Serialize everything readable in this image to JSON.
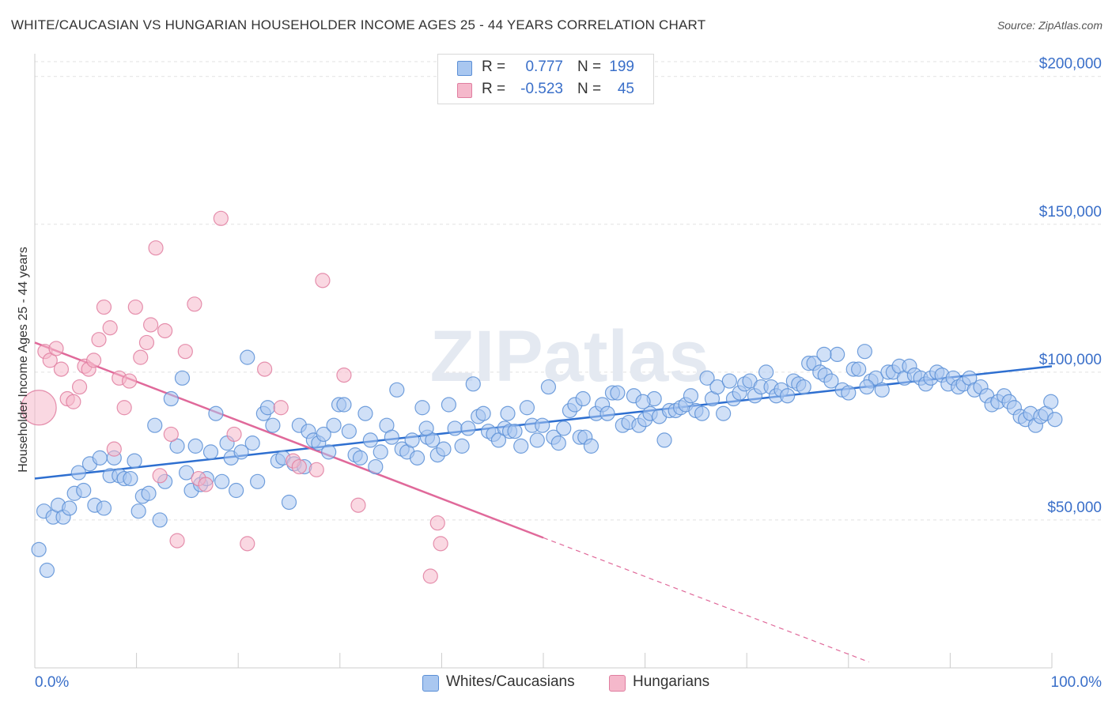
{
  "title": "WHITE/CAUCASIAN VS HUNGARIAN HOUSEHOLDER INCOME AGES 25 - 44 YEARS CORRELATION CHART",
  "source": "Source: ZipAtlas.com",
  "watermark": "ZIPatlas",
  "stats": [
    {
      "r_label": "R =",
      "r_value": "0.777",
      "n_label": "N =",
      "n_value": "199",
      "color": "#a9c7f0"
    },
    {
      "r_label": "R =",
      "r_value": "-0.523",
      "n_label": "N =",
      "n_value": "45",
      "color": "#f5b8cb"
    }
  ],
  "legend": [
    {
      "label": "Whites/Caucasians",
      "color": "#a9c7f0"
    },
    {
      "label": "Hungarians",
      "color": "#f5b8cb"
    }
  ],
  "chart_data": {
    "type": "scatter",
    "title": "WHITE/CAUCASIAN VS HUNGARIAN HOUSEHOLDER INCOME AGES 25 - 44 YEARS CORRELATION CHART",
    "xlabel": "",
    "ylabel": "Householder Income Ages 25 - 44 years",
    "xlim": [
      0,
      100
    ],
    "ylim": [
      0,
      205000
    ],
    "x_ticks": [
      "0.0%",
      "100.0%"
    ],
    "y_ticks": [
      {
        "value": 50000,
        "label": "$50,000"
      },
      {
        "value": 100000,
        "label": "$100,000"
      },
      {
        "value": 150000,
        "label": "$150,000"
      },
      {
        "value": 200000,
        "label": "$200,000"
      }
    ],
    "grid": "horizontal dashed",
    "series": [
      {
        "name": "Whites/Caucasians",
        "color": "#a9c7f0",
        "edge_color": "#5b8fd6",
        "trend_color": "#2e6fd0",
        "trend": {
          "x0": 0,
          "y0": 64000,
          "x1": 100,
          "y1": 102000,
          "dashed_to": null
        },
        "points": [
          [
            0.4,
            40000
          ],
          [
            1.2,
            33000
          ],
          [
            0.9,
            53000
          ],
          [
            1.8,
            51000
          ],
          [
            2.3,
            55000
          ],
          [
            2.8,
            51000
          ],
          [
            3.4,
            54000
          ],
          [
            3.9,
            59000
          ],
          [
            4.3,
            66000
          ],
          [
            4.8,
            60000
          ],
          [
            5.4,
            69000
          ],
          [
            5.9,
            55000
          ],
          [
            6.4,
            71000
          ],
          [
            6.8,
            54000
          ],
          [
            7.4,
            65000
          ],
          [
            7.8,
            71000
          ],
          [
            8.3,
            65000
          ],
          [
            8.8,
            64000
          ],
          [
            9.4,
            64000
          ],
          [
            9.8,
            70000
          ],
          [
            10.2,
            53000
          ],
          [
            10.6,
            58000
          ],
          [
            11.2,
            59000
          ],
          [
            11.8,
            82000
          ],
          [
            12.3,
            50000
          ],
          [
            12.8,
            63000
          ],
          [
            13.4,
            91000
          ],
          [
            14.0,
            75000
          ],
          [
            14.5,
            98000
          ],
          [
            14.9,
            66000
          ],
          [
            15.4,
            60000
          ],
          [
            15.8,
            75000
          ],
          [
            16.3,
            62000
          ],
          [
            16.9,
            64000
          ],
          [
            17.3,
            73000
          ],
          [
            17.8,
            86000
          ],
          [
            18.4,
            63000
          ],
          [
            18.9,
            76000
          ],
          [
            19.3,
            71000
          ],
          [
            19.8,
            60000
          ],
          [
            20.3,
            73000
          ],
          [
            20.9,
            105000
          ],
          [
            21.4,
            76000
          ],
          [
            21.9,
            63000
          ],
          [
            22.5,
            86000
          ],
          [
            22.9,
            88000
          ],
          [
            23.4,
            82000
          ],
          [
            23.9,
            70000
          ],
          [
            24.4,
            71000
          ],
          [
            25.0,
            56000
          ],
          [
            25.5,
            69000
          ],
          [
            26.0,
            82000
          ],
          [
            26.5,
            68000
          ],
          [
            26.9,
            80000
          ],
          [
            27.4,
            77000
          ],
          [
            27.9,
            76000
          ],
          [
            28.4,
            79000
          ],
          [
            28.9,
            73000
          ],
          [
            29.4,
            82000
          ],
          [
            29.9,
            89000
          ],
          [
            30.4,
            89000
          ],
          [
            30.9,
            80000
          ],
          [
            31.5,
            72000
          ],
          [
            32.0,
            71000
          ],
          [
            32.5,
            86000
          ],
          [
            33.0,
            77000
          ],
          [
            33.5,
            68000
          ],
          [
            34.0,
            73000
          ],
          [
            34.6,
            82000
          ],
          [
            35.1,
            78000
          ],
          [
            35.6,
            94000
          ],
          [
            36.1,
            74000
          ],
          [
            36.6,
            73000
          ],
          [
            37.1,
            77000
          ],
          [
            37.6,
            71000
          ],
          [
            38.1,
            88000
          ],
          [
            38.6,
            78000
          ],
          [
            39.1,
            77000
          ],
          [
            39.6,
            72000
          ],
          [
            40.2,
            74000
          ],
          [
            40.7,
            89000
          ],
          [
            41.3,
            81000
          ],
          [
            42.0,
            75000
          ],
          [
            42.6,
            81000
          ],
          [
            43.1,
            96000
          ],
          [
            43.6,
            85000
          ],
          [
            44.1,
            86000
          ],
          [
            44.6,
            80000
          ],
          [
            45.1,
            79000
          ],
          [
            45.6,
            77000
          ],
          [
            46.2,
            81000
          ],
          [
            46.7,
            80000
          ],
          [
            47.2,
            80000
          ],
          [
            47.8,
            75000
          ],
          [
            48.4,
            88000
          ],
          [
            48.9,
            82000
          ],
          [
            49.4,
            77000
          ],
          [
            49.9,
            82000
          ],
          [
            50.5,
            95000
          ],
          [
            51.0,
            78000
          ],
          [
            51.5,
            76000
          ],
          [
            52.0,
            81000
          ],
          [
            52.6,
            87000
          ],
          [
            53.1,
            89000
          ],
          [
            53.6,
            78000
          ],
          [
            54.1,
            78000
          ],
          [
            54.7,
            75000
          ],
          [
            55.2,
            86000
          ],
          [
            55.8,
            89000
          ],
          [
            56.3,
            86000
          ],
          [
            56.8,
            93000
          ],
          [
            57.3,
            93000
          ],
          [
            57.8,
            82000
          ],
          [
            58.4,
            83000
          ],
          [
            58.9,
            92000
          ],
          [
            59.4,
            82000
          ],
          [
            60.0,
            84000
          ],
          [
            60.5,
            86000
          ],
          [
            60.9,
            91000
          ],
          [
            61.4,
            85000
          ],
          [
            61.9,
            77000
          ],
          [
            62.4,
            87000
          ],
          [
            63.0,
            87000
          ],
          [
            63.5,
            88000
          ],
          [
            64.0,
            89000
          ],
          [
            64.5,
            92000
          ],
          [
            65.0,
            87000
          ],
          [
            65.6,
            86000
          ],
          [
            66.1,
            98000
          ],
          [
            66.6,
            91000
          ],
          [
            67.1,
            95000
          ],
          [
            67.7,
            86000
          ],
          [
            68.3,
            97000
          ],
          [
            68.7,
            91000
          ],
          [
            69.3,
            93000
          ],
          [
            69.8,
            96000
          ],
          [
            70.3,
            97000
          ],
          [
            70.8,
            92000
          ],
          [
            71.4,
            95000
          ],
          [
            71.9,
            100000
          ],
          [
            72.4,
            95000
          ],
          [
            72.9,
            92000
          ],
          [
            73.4,
            94000
          ],
          [
            74.0,
            92000
          ],
          [
            74.6,
            97000
          ],
          [
            75.1,
            96000
          ],
          [
            75.6,
            95000
          ],
          [
            76.1,
            103000
          ],
          [
            76.6,
            103000
          ],
          [
            77.2,
            100000
          ],
          [
            77.7,
            99000
          ],
          [
            78.3,
            97000
          ],
          [
            78.9,
            106000
          ],
          [
            79.4,
            94000
          ],
          [
            80.0,
            93000
          ],
          [
            80.5,
            101000
          ],
          [
            81.0,
            101000
          ],
          [
            81.6,
            107000
          ],
          [
            82.2,
            97000
          ],
          [
            82.7,
            98000
          ],
          [
            83.3,
            94000
          ],
          [
            83.9,
            100000
          ],
          [
            84.4,
            100000
          ],
          [
            85.0,
            102000
          ],
          [
            85.5,
            98000
          ],
          [
            86.0,
            102000
          ],
          [
            86.5,
            99000
          ],
          [
            87.1,
            98000
          ],
          [
            87.6,
            96000
          ],
          [
            88.1,
            98000
          ],
          [
            88.7,
            100000
          ],
          [
            89.2,
            99000
          ],
          [
            89.8,
            96000
          ],
          [
            90.3,
            98000
          ],
          [
            90.8,
            95000
          ],
          [
            91.3,
            96000
          ],
          [
            91.9,
            98000
          ],
          [
            92.4,
            94000
          ],
          [
            93.0,
            95000
          ],
          [
            93.6,
            92000
          ],
          [
            94.1,
            89000
          ],
          [
            94.7,
            90000
          ],
          [
            95.3,
            92000
          ],
          [
            95.8,
            90000
          ],
          [
            96.3,
            88000
          ],
          [
            96.9,
            85000
          ],
          [
            97.4,
            84000
          ],
          [
            97.9,
            86000
          ],
          [
            98.4,
            82000
          ],
          [
            98.9,
            85000
          ],
          [
            99.4,
            86000
          ],
          [
            99.9,
            90000
          ],
          [
            100.3,
            84000
          ],
          [
            77.6,
            106000
          ],
          [
            81.8,
            95000
          ],
          [
            59.8,
            90000
          ],
          [
            53.9,
            91000
          ],
          [
            46.5,
            86000
          ],
          [
            38.5,
            81000
          ]
        ]
      },
      {
        "name": "Hungarians",
        "color": "#f5b8cb",
        "edge_color": "#e07ea0",
        "trend_color": "#e0699a",
        "trend": {
          "x0": 0,
          "y0": 110000,
          "x1": 50,
          "y1": 44000,
          "dashed_to": {
            "x": 82,
            "y": 2000
          }
        },
        "points": [
          [
            0.4,
            88000
          ],
          [
            1.0,
            107000
          ],
          [
            1.5,
            104000
          ],
          [
            2.1,
            108000
          ],
          [
            2.6,
            101000
          ],
          [
            3.2,
            91000
          ],
          [
            3.8,
            90000
          ],
          [
            4.4,
            95000
          ],
          [
            4.9,
            102000
          ],
          [
            5.3,
            101000
          ],
          [
            5.8,
            104000
          ],
          [
            6.3,
            111000
          ],
          [
            6.8,
            122000
          ],
          [
            7.4,
            115000
          ],
          [
            7.8,
            74000
          ],
          [
            8.3,
            98000
          ],
          [
            8.8,
            88000
          ],
          [
            9.3,
            97000
          ],
          [
            9.9,
            122000
          ],
          [
            10.4,
            105000
          ],
          [
            11.0,
            110000
          ],
          [
            11.4,
            116000
          ],
          [
            11.9,
            142000
          ],
          [
            12.3,
            65000
          ],
          [
            12.8,
            114000
          ],
          [
            13.4,
            79000
          ],
          [
            14.0,
            43000
          ],
          [
            14.8,
            107000
          ],
          [
            15.7,
            123000
          ],
          [
            16.1,
            64000
          ],
          [
            16.8,
            62000
          ],
          [
            18.3,
            152000
          ],
          [
            19.6,
            79000
          ],
          [
            20.9,
            42000
          ],
          [
            22.6,
            101000
          ],
          [
            24.2,
            88000
          ],
          [
            25.4,
            70000
          ],
          [
            26.0,
            68000
          ],
          [
            27.7,
            67000
          ],
          [
            28.3,
            131000
          ],
          [
            30.4,
            99000
          ],
          [
            31.8,
            55000
          ],
          [
            38.9,
            31000
          ],
          [
            39.6,
            49000
          ],
          [
            39.9,
            42000
          ]
        ]
      }
    ]
  }
}
